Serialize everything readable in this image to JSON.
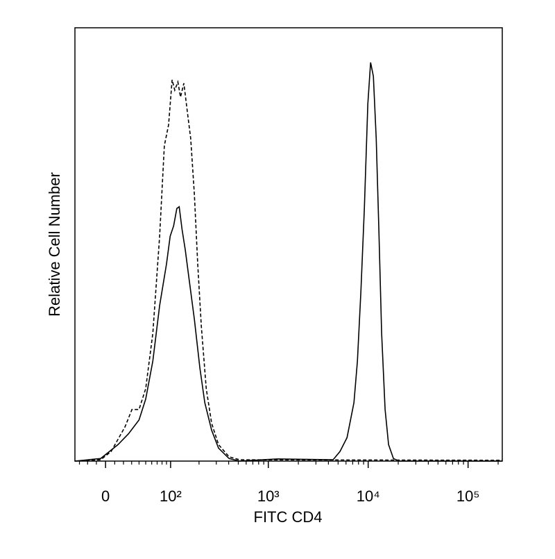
{
  "chart_data": {
    "type": "line",
    "x_label": "FITC CD4",
    "y_label": "Relative Cell Number",
    "xscale": "biexponential",
    "xlim": [
      -36,
      220000
    ],
    "ylim": [
      0,
      100
    ],
    "xticks": [
      0,
      {
        "value": 100,
        "label": "10²"
      },
      {
        "value": 1000,
        "label": "10³"
      },
      {
        "value": 10000,
        "label": "10⁴"
      },
      {
        "value": 100000,
        "label": "10⁵"
      }
    ],
    "xminor_ticks": [
      -30,
      -20,
      -10,
      10,
      20,
      30,
      40,
      50,
      60,
      70,
      80,
      90,
      200,
      300,
      400,
      500,
      600,
      700,
      800,
      900,
      2000,
      3000,
      4000,
      5000,
      6000,
      7000,
      8000,
      9000,
      20000,
      30000,
      40000,
      50000,
      60000,
      70000,
      80000,
      90000,
      200000
    ],
    "series": [
      {
        "color": "#000000",
        "line_style": "dashed",
        "x": [
          -36,
          -5.3,
          6,
          21.8,
          30.4,
          40,
          50,
          62,
          75,
          85,
          95,
          104,
          111,
          120,
          128,
          139,
          151,
          164,
          179,
          194,
          211,
          237,
          269,
          316,
          404,
          514,
          220000
        ],
        "values": [
          0,
          0.3,
          2.2,
          7.9,
          11.9,
          11.9,
          16.7,
          29.5,
          51.9,
          72.8,
          77.6,
          88.0,
          85.6,
          87.5,
          84.0,
          87.2,
          80.8,
          74.4,
          61.5,
          45.5,
          31.1,
          16.7,
          8.7,
          3.8,
          1.0,
          0.3,
          0.2
        ]
      },
      {
        "color": "#000000",
        "line_style": "solid",
        "x": [
          -36,
          -5.3,
          13.7,
          26,
          40,
          50,
          62,
          75,
          90,
          99,
          108,
          117,
          124,
          133,
          144,
          157,
          179,
          204,
          229,
          269,
          316,
          404,
          514,
          1240,
          4456,
          5220,
          6140,
          7200,
          7800,
          8460,
          9160,
          9920,
          10570,
          11270,
          12030,
          12800,
          13640,
          14770,
          16000,
          17900,
          20350,
          220000
        ],
        "values": [
          0,
          0.6,
          3.8,
          6.3,
          9.5,
          14.3,
          23.1,
          35.9,
          45.5,
          51.9,
          54.3,
          58.3,
          58.7,
          53.5,
          48.7,
          42.3,
          32.7,
          21.5,
          13.5,
          7.1,
          3.0,
          0.6,
          0,
          0.5,
          0.3,
          2.2,
          5.4,
          13.5,
          23.1,
          39.1,
          58.3,
          82.4,
          92.0,
          88.8,
          74.4,
          53.5,
          29.5,
          11.9,
          3.8,
          0.6,
          0,
          0
        ]
      }
    ]
  }
}
